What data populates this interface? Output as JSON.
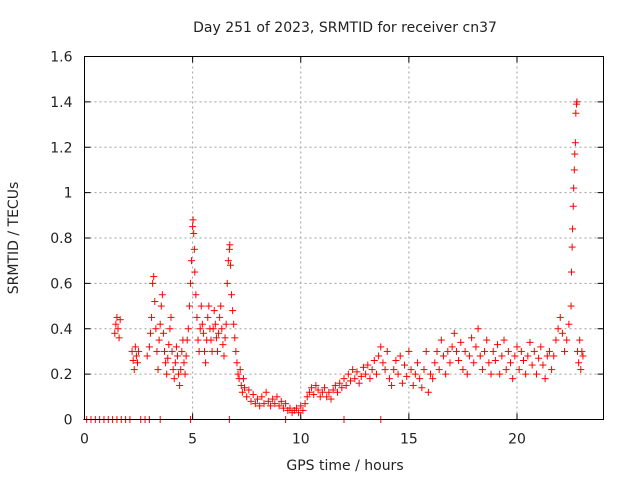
{
  "chart_data": {
    "type": "scatter",
    "title": "Day 251 of 2023, SRMTID for receiver cn37",
    "xlabel": "GPS time / hours",
    "ylabel": "SRMTID / TECUs",
    "xlim": [
      0,
      24
    ],
    "ylim": [
      0,
      1.6
    ],
    "x_ticks": [
      0,
      5,
      10,
      15,
      20
    ],
    "x_tick_labels": [
      "0",
      "5",
      "10",
      "15",
      "20"
    ],
    "y_ticks": [
      0,
      0.2,
      0.4,
      0.6,
      0.8,
      1,
      1.2,
      1.4,
      1.6
    ],
    "y_tick_labels": [
      "0",
      "0.2",
      "0.4",
      "0.6",
      "0.8",
      "1",
      "1.2",
      "1.4",
      "1.6"
    ],
    "grid": true,
    "marker": "+",
    "series": [
      {
        "name": "SRMTID",
        "color": "#ff0000",
        "points": [
          [
            0.1,
            0
          ],
          [
            0.3,
            0
          ],
          [
            0.5,
            0
          ],
          [
            0.7,
            0
          ],
          [
            0.9,
            0
          ],
          [
            1.1,
            0
          ],
          [
            1.3,
            0
          ],
          [
            1.5,
            0
          ],
          [
            1.7,
            0
          ],
          [
            1.9,
            0
          ],
          [
            2.1,
            0
          ],
          [
            2.6,
            0
          ],
          [
            2.8,
            0
          ],
          [
            3.0,
            0
          ],
          [
            3.5,
            0
          ],
          [
            4.9,
            0
          ],
          [
            6.7,
            0
          ],
          [
            9.3,
            0
          ],
          [
            12.0,
            0
          ],
          [
            13.7,
            0
          ],
          [
            1.4,
            0.38
          ],
          [
            1.45,
            0.42
          ],
          [
            1.5,
            0.45
          ],
          [
            1.55,
            0.4
          ],
          [
            1.6,
            0.36
          ],
          [
            1.65,
            0.44
          ],
          [
            2.2,
            0.3
          ],
          [
            2.25,
            0.26
          ],
          [
            2.3,
            0.22
          ],
          [
            2.35,
            0.32
          ],
          [
            2.4,
            0.28
          ],
          [
            2.45,
            0.25
          ],
          [
            2.5,
            0.3
          ],
          [
            2.9,
            0.28
          ],
          [
            3.0,
            0.32
          ],
          [
            3.05,
            0.38
          ],
          [
            3.1,
            0.45
          ],
          [
            3.15,
            0.6
          ],
          [
            3.2,
            0.63
          ],
          [
            3.25,
            0.52
          ],
          [
            3.3,
            0.4
          ],
          [
            3.35,
            0.3
          ],
          [
            3.4,
            0.22
          ],
          [
            3.45,
            0.35
          ],
          [
            3.5,
            0.42
          ],
          [
            3.55,
            0.5
          ],
          [
            3.6,
            0.55
          ],
          [
            3.65,
            0.38
          ],
          [
            3.7,
            0.3
          ],
          [
            3.75,
            0.25
          ],
          [
            3.8,
            0.2
          ],
          [
            3.85,
            0.27
          ],
          [
            3.9,
            0.33
          ],
          [
            3.95,
            0.4
          ],
          [
            4.0,
            0.45
          ],
          [
            4.05,
            0.3
          ],
          [
            4.1,
            0.22
          ],
          [
            4.15,
            0.18
          ],
          [
            4.2,
            0.25
          ],
          [
            4.25,
            0.32
          ],
          [
            4.3,
            0.28
          ],
          [
            4.35,
            0.2
          ],
          [
            4.4,
            0.15
          ],
          [
            4.45,
            0.22
          ],
          [
            4.5,
            0.3
          ],
          [
            4.55,
            0.35
          ],
          [
            4.6,
            0.25
          ],
          [
            4.65,
            0.2
          ],
          [
            4.7,
            0.28
          ],
          [
            4.75,
            0.35
          ],
          [
            4.8,
            0.4
          ],
          [
            4.85,
            0.5
          ],
          [
            4.9,
            0.6
          ],
          [
            4.95,
            0.7
          ],
          [
            5.0,
            0.85
          ],
          [
            5.02,
            0.88
          ],
          [
            5.05,
            0.82
          ],
          [
            5.08,
            0.75
          ],
          [
            5.1,
            0.65
          ],
          [
            5.15,
            0.55
          ],
          [
            5.2,
            0.45
          ],
          [
            5.25,
            0.35
          ],
          [
            5.3,
            0.3
          ],
          [
            5.35,
            0.4
          ],
          [
            5.4,
            0.5
          ],
          [
            5.45,
            0.42
          ],
          [
            5.5,
            0.38
          ],
          [
            5.55,
            0.3
          ],
          [
            5.6,
            0.25
          ],
          [
            5.65,
            0.35
          ],
          [
            5.7,
            0.45
          ],
          [
            5.75,
            0.5
          ],
          [
            5.8,
            0.4
          ],
          [
            5.85,
            0.35
          ],
          [
            5.9,
            0.3
          ],
          [
            5.95,
            0.4
          ],
          [
            6.0,
            0.48
          ],
          [
            6.05,
            0.42
          ],
          [
            6.1,
            0.36
          ],
          [
            6.15,
            0.3
          ],
          [
            6.2,
            0.38
          ],
          [
            6.25,
            0.45
          ],
          [
            6.3,
            0.5
          ],
          [
            6.35,
            0.4
          ],
          [
            6.4,
            0.33
          ],
          [
            6.45,
            0.28
          ],
          [
            6.5,
            0.36
          ],
          [
            6.55,
            0.42
          ],
          [
            6.6,
            0.6
          ],
          [
            6.65,
            0.7
          ],
          [
            6.7,
            0.75
          ],
          [
            6.72,
            0.77
          ],
          [
            6.75,
            0.68
          ],
          [
            6.8,
            0.55
          ],
          [
            6.85,
            0.48
          ],
          [
            6.9,
            0.42
          ],
          [
            6.95,
            0.36
          ],
          [
            7.0,
            0.3
          ],
          [
            7.05,
            0.25
          ],
          [
            7.1,
            0.2
          ],
          [
            7.15,
            0.18
          ],
          [
            7.2,
            0.22
          ],
          [
            7.25,
            0.15
          ],
          [
            7.3,
            0.12
          ],
          [
            7.35,
            0.18
          ],
          [
            7.4,
            0.14
          ],
          [
            7.5,
            0.1
          ],
          [
            7.6,
            0.13
          ],
          [
            7.7,
            0.08
          ],
          [
            7.8,
            0.11
          ],
          [
            7.9,
            0.07
          ],
          [
            8.0,
            0.09
          ],
          [
            8.1,
            0.06
          ],
          [
            8.2,
            0.1
          ],
          [
            8.3,
            0.07
          ],
          [
            8.4,
            0.12
          ],
          [
            8.5,
            0.08
          ],
          [
            8.6,
            0.06
          ],
          [
            8.7,
            0.09
          ],
          [
            8.8,
            0.07
          ],
          [
            8.9,
            0.1
          ],
          [
            9.0,
            0.06
          ],
          [
            9.1,
            0.08
          ],
          [
            9.2,
            0.05
          ],
          [
            9.3,
            0.07
          ],
          [
            9.4,
            0.04
          ],
          [
            9.5,
            0.05
          ],
          [
            9.6,
            0.03
          ],
          [
            9.7,
            0.04
          ],
          [
            9.8,
            0.05
          ],
          [
            9.9,
            0.03
          ],
          [
            10.0,
            0.06
          ],
          [
            10.1,
            0.04
          ],
          [
            10.2,
            0.07
          ],
          [
            10.3,
            0.1
          ],
          [
            10.4,
            0.12
          ],
          [
            10.5,
            0.14
          ],
          [
            10.6,
            0.11
          ],
          [
            10.7,
            0.15
          ],
          [
            10.8,
            0.13
          ],
          [
            10.9,
            0.1
          ],
          [
            11.0,
            0.12
          ],
          [
            11.1,
            0.14
          ],
          [
            11.2,
            0.1
          ],
          [
            11.3,
            0.12
          ],
          [
            11.4,
            0.09
          ],
          [
            11.5,
            0.13
          ],
          [
            11.6,
            0.15
          ],
          [
            11.7,
            0.12
          ],
          [
            11.8,
            0.16
          ],
          [
            11.9,
            0.14
          ],
          [
            12.0,
            0.18
          ],
          [
            12.1,
            0.15
          ],
          [
            12.2,
            0.2
          ],
          [
            12.3,
            0.17
          ],
          [
            12.4,
            0.22
          ],
          [
            12.5,
            0.18
          ],
          [
            12.6,
            0.21
          ],
          [
            12.7,
            0.16
          ],
          [
            12.8,
            0.19
          ],
          [
            12.9,
            0.23
          ],
          [
            13.0,
            0.2
          ],
          [
            13.1,
            0.24
          ],
          [
            13.2,
            0.18
          ],
          [
            13.3,
            0.22
          ],
          [
            13.4,
            0.26
          ],
          [
            13.5,
            0.2
          ],
          [
            13.6,
            0.28
          ],
          [
            13.7,
            0.32
          ],
          [
            13.8,
            0.25
          ],
          [
            13.9,
            0.22
          ],
          [
            14.0,
            0.3
          ],
          [
            14.1,
            0.18
          ],
          [
            14.2,
            0.15
          ],
          [
            14.3,
            0.22
          ],
          [
            14.4,
            0.26
          ],
          [
            14.5,
            0.2
          ],
          [
            14.6,
            0.28
          ],
          [
            14.7,
            0.16
          ],
          [
            14.8,
            0.24
          ],
          [
            14.9,
            0.19
          ],
          [
            15.0,
            0.3
          ],
          [
            15.1,
            0.22
          ],
          [
            15.2,
            0.15
          ],
          [
            15.3,
            0.2
          ],
          [
            15.4,
            0.25
          ],
          [
            15.5,
            0.18
          ],
          [
            15.6,
            0.14
          ],
          [
            15.7,
            0.22
          ],
          [
            15.8,
            0.3
          ],
          [
            15.9,
            0.12
          ],
          [
            16.0,
            0.2
          ],
          [
            16.1,
            0.18
          ],
          [
            16.2,
            0.25
          ],
          [
            16.3,
            0.3
          ],
          [
            16.4,
            0.22
          ],
          [
            16.5,
            0.35
          ],
          [
            16.6,
            0.28
          ],
          [
            16.7,
            0.2
          ],
          [
            16.8,
            0.3
          ],
          [
            16.9,
            0.25
          ],
          [
            17.0,
            0.32
          ],
          [
            17.1,
            0.38
          ],
          [
            17.2,
            0.3
          ],
          [
            17.3,
            0.26
          ],
          [
            17.4,
            0.34
          ],
          [
            17.5,
            0.22
          ],
          [
            17.6,
            0.3
          ],
          [
            17.7,
            0.2
          ],
          [
            17.8,
            0.28
          ],
          [
            17.9,
            0.36
          ],
          [
            18.0,
            0.25
          ],
          [
            18.1,
            0.32
          ],
          [
            18.2,
            0.4
          ],
          [
            18.3,
            0.28
          ],
          [
            18.4,
            0.22
          ],
          [
            18.5,
            0.3
          ],
          [
            18.6,
            0.35
          ],
          [
            18.7,
            0.25
          ],
          [
            18.8,
            0.2
          ],
          [
            18.9,
            0.3
          ],
          [
            19.0,
            0.26
          ],
          [
            19.1,
            0.33
          ],
          [
            19.2,
            0.2
          ],
          [
            19.3,
            0.28
          ],
          [
            19.4,
            0.35
          ],
          [
            19.5,
            0.22
          ],
          [
            19.6,
            0.3
          ],
          [
            19.7,
            0.25
          ],
          [
            19.8,
            0.18
          ],
          [
            19.9,
            0.28
          ],
          [
            20.0,
            0.32
          ],
          [
            20.1,
            0.22
          ],
          [
            20.2,
            0.3
          ],
          [
            20.3,
            0.26
          ],
          [
            20.4,
            0.2
          ],
          [
            20.5,
            0.28
          ],
          [
            20.6,
            0.34
          ],
          [
            20.7,
            0.24
          ],
          [
            20.8,
            0.3
          ],
          [
            20.9,
            0.2
          ],
          [
            21.0,
            0.27
          ],
          [
            21.1,
            0.32
          ],
          [
            21.2,
            0.24
          ],
          [
            21.3,
            0.18
          ],
          [
            21.4,
            0.28
          ],
          [
            21.5,
            0.3
          ],
          [
            21.6,
            0.22
          ],
          [
            21.7,
            0.28
          ],
          [
            21.8,
            0.35
          ],
          [
            21.9,
            0.4
          ],
          [
            22.0,
            0.45
          ],
          [
            22.1,
            0.38
          ],
          [
            22.2,
            0.3
          ],
          [
            22.3,
            0.35
          ],
          [
            22.4,
            0.42
          ],
          [
            22.5,
            0.5
          ],
          [
            22.52,
            0.65
          ],
          [
            22.55,
            0.76
          ],
          [
            22.57,
            0.84
          ],
          [
            22.6,
            0.94
          ],
          [
            22.62,
            1.02
          ],
          [
            22.65,
            1.1
          ],
          [
            22.67,
            1.17
          ],
          [
            22.7,
            1.22
          ],
          [
            22.72,
            1.35
          ],
          [
            22.75,
            1.39
          ],
          [
            22.77,
            1.4
          ],
          [
            22.8,
            0.3
          ],
          [
            22.85,
            0.25
          ],
          [
            22.9,
            0.35
          ],
          [
            22.95,
            0.22
          ],
          [
            23.0,
            0.3
          ],
          [
            23.05,
            0.28
          ]
        ]
      }
    ]
  }
}
